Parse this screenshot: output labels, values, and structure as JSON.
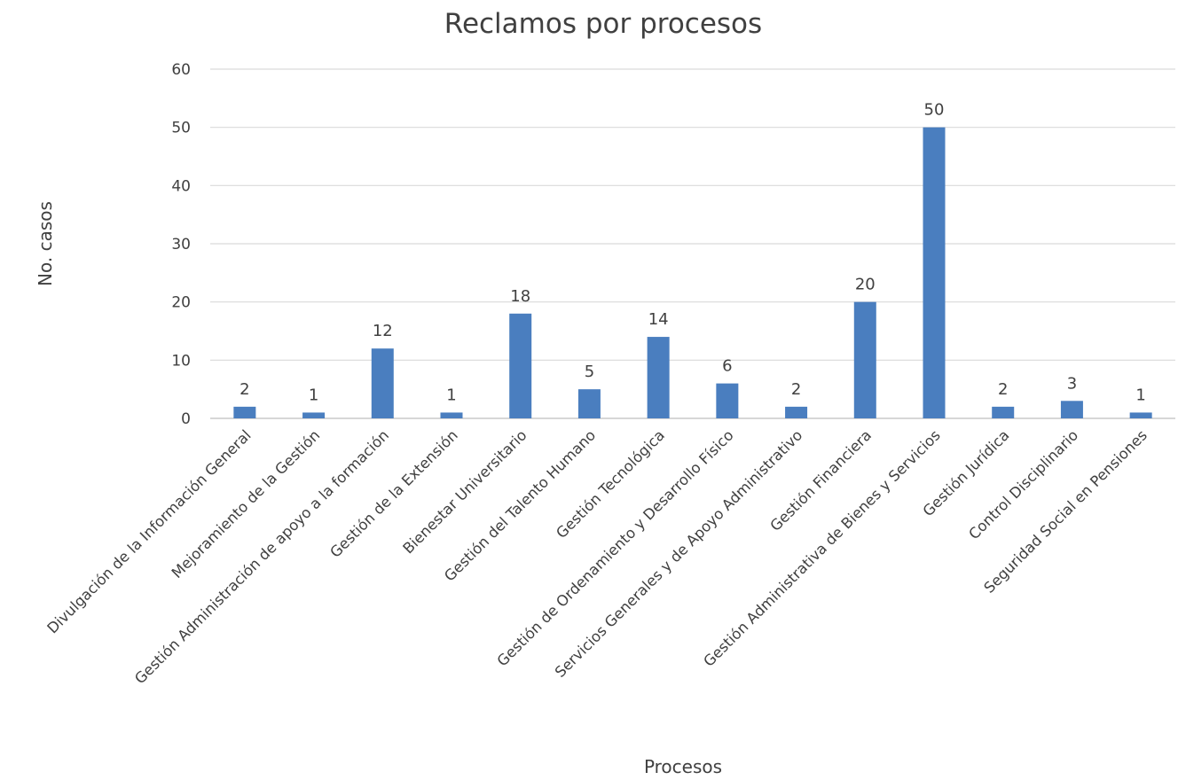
{
  "chart_data": {
    "type": "bar",
    "title": "Reclamos por procesos",
    "xlabel": "Procesos",
    "ylabel": "No. casos",
    "ylim": [
      0,
      60
    ],
    "yticks": [
      0,
      10,
      20,
      30,
      40,
      50,
      60
    ],
    "grid": true,
    "legend": "none",
    "bar_color": "#4a7ebf",
    "categories": [
      "Divulgación de la Información General",
      "Mejoramiento de la Gestión",
      "Gestión Administración de apoyo a la formación",
      "Gestión de la Extensión",
      "Bienestar Universitario",
      "Gestión del Talento Humano",
      "Gestión Tecnológica",
      "Gestión de Ordenamiento y Desarrollo Físico",
      "Servicios Generales y de Apoyo Administrativo",
      "Gestión Financiera",
      "Gestión Administrativa de Bienes y Servicios",
      "Gestión Jurídica",
      "Control Disciplinario",
      "Seguridad Social en Pensiones"
    ],
    "values": [
      2,
      1,
      12,
      1,
      18,
      5,
      14,
      6,
      2,
      20,
      50,
      2,
      3,
      1
    ]
  }
}
